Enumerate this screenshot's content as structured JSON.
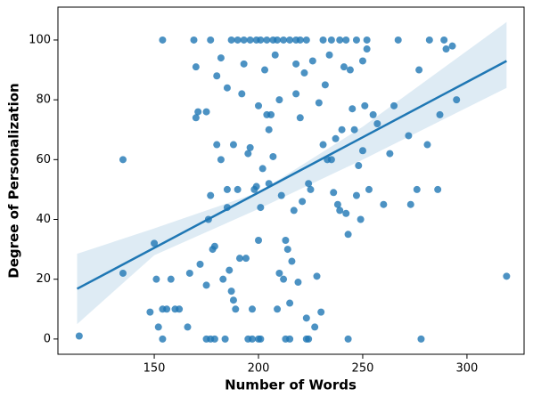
{
  "chart_data": {
    "type": "scatter",
    "xlabel": "Number of Words",
    "ylabel": "Degree of Personalization",
    "xlim": [
      103.8,
      327.4
    ],
    "ylim": [
      -5.1,
      111
    ],
    "xticks": [
      150,
      200,
      250,
      300
    ],
    "yticks": [
      0,
      20,
      40,
      60,
      80,
      100
    ],
    "grid": false,
    "series": [
      {
        "color": "#1f77b4",
        "x": [
          154,
          169,
          177,
          187,
          190,
          193,
          196,
          199,
          201,
          204,
          207,
          209,
          212,
          215,
          218,
          220,
          223,
          231,
          235,
          239,
          242,
          247,
          252,
          267,
          282,
          289,
          154,
          175,
          177,
          179,
          184,
          195,
          197,
          200,
          201,
          213,
          215,
          223,
          224,
          243,
          278,
          114,
          135,
          135,
          150,
          151,
          152,
          148,
          154,
          156,
          158,
          160,
          162,
          166,
          167,
          170,
          171,
          172,
          175,
          176,
          177,
          178,
          179,
          180,
          182,
          183,
          185,
          186,
          187,
          188,
          189,
          190,
          191,
          192,
          193,
          194,
          195,
          196,
          197,
          198,
          199,
          200,
          201,
          202,
          203,
          204,
          205,
          206,
          207,
          208,
          209,
          210,
          211,
          212,
          213,
          214,
          215,
          216,
          217,
          218,
          219,
          220,
          221,
          222,
          223,
          224,
          225,
          226,
          227,
          228,
          229,
          230,
          231,
          232,
          233,
          234,
          235,
          236,
          237,
          238,
          239,
          240,
          241,
          242,
          243,
          244,
          245,
          246,
          247,
          248,
          249,
          250,
          251,
          253,
          255,
          257,
          260,
          263,
          265,
          272,
          273,
          276,
          277,
          281,
          286,
          287,
          290,
          293,
          295,
          319,
          175,
          170,
          180,
          182,
          185,
          205,
          210,
          185,
          188,
          200,
          218,
          250,
          252
        ],
        "values": [
          100,
          100,
          100,
          100,
          100,
          100,
          100,
          100,
          100,
          100,
          100,
          100,
          100,
          100,
          100,
          100,
          100,
          100,
          100,
          100,
          100,
          100,
          100,
          100,
          100,
          100,
          0,
          0,
          0,
          0,
          0,
          0,
          0,
          0,
          0,
          0,
          0,
          0,
          0,
          0,
          0,
          1,
          22,
          60,
          32,
          20,
          4,
          9,
          10,
          10,
          20,
          10,
          10,
          4,
          22,
          74,
          76,
          25,
          18,
          40,
          48,
          30,
          31,
          65,
          60,
          20,
          50,
          23,
          16,
          13,
          10,
          50,
          27,
          82,
          92,
          27,
          62,
          64,
          10,
          50,
          51,
          33,
          44,
          57,
          90,
          75,
          52,
          75,
          61,
          95,
          10,
          22,
          48,
          20,
          33,
          30,
          12,
          26,
          43,
          82,
          19,
          74,
          46,
          89,
          7,
          52,
          50,
          93,
          4,
          21,
          79,
          9,
          65,
          85,
          60,
          95,
          60,
          49,
          67,
          45,
          43,
          70,
          91,
          42,
          35,
          90,
          77,
          70,
          48,
          58,
          40,
          63,
          78,
          50,
          75,
          72,
          45,
          62,
          78,
          68,
          45,
          50,
          90,
          65,
          50,
          75,
          97,
          98,
          80,
          21,
          76,
          91,
          88,
          94,
          84,
          70,
          80,
          44,
          65,
          78,
          92,
          93,
          97
        ]
      }
    ],
    "regression": {
      "color": "#1f77b4",
      "x": [
        113,
        319
      ],
      "values": [
        16.8,
        93
      ]
    },
    "band": {
      "x": [
        113,
        150,
        200,
        250,
        319
      ],
      "lower": [
        5,
        28,
        43.5,
        60,
        84
      ],
      "upper": [
        28.5,
        37,
        49,
        71,
        106
      ]
    }
  }
}
